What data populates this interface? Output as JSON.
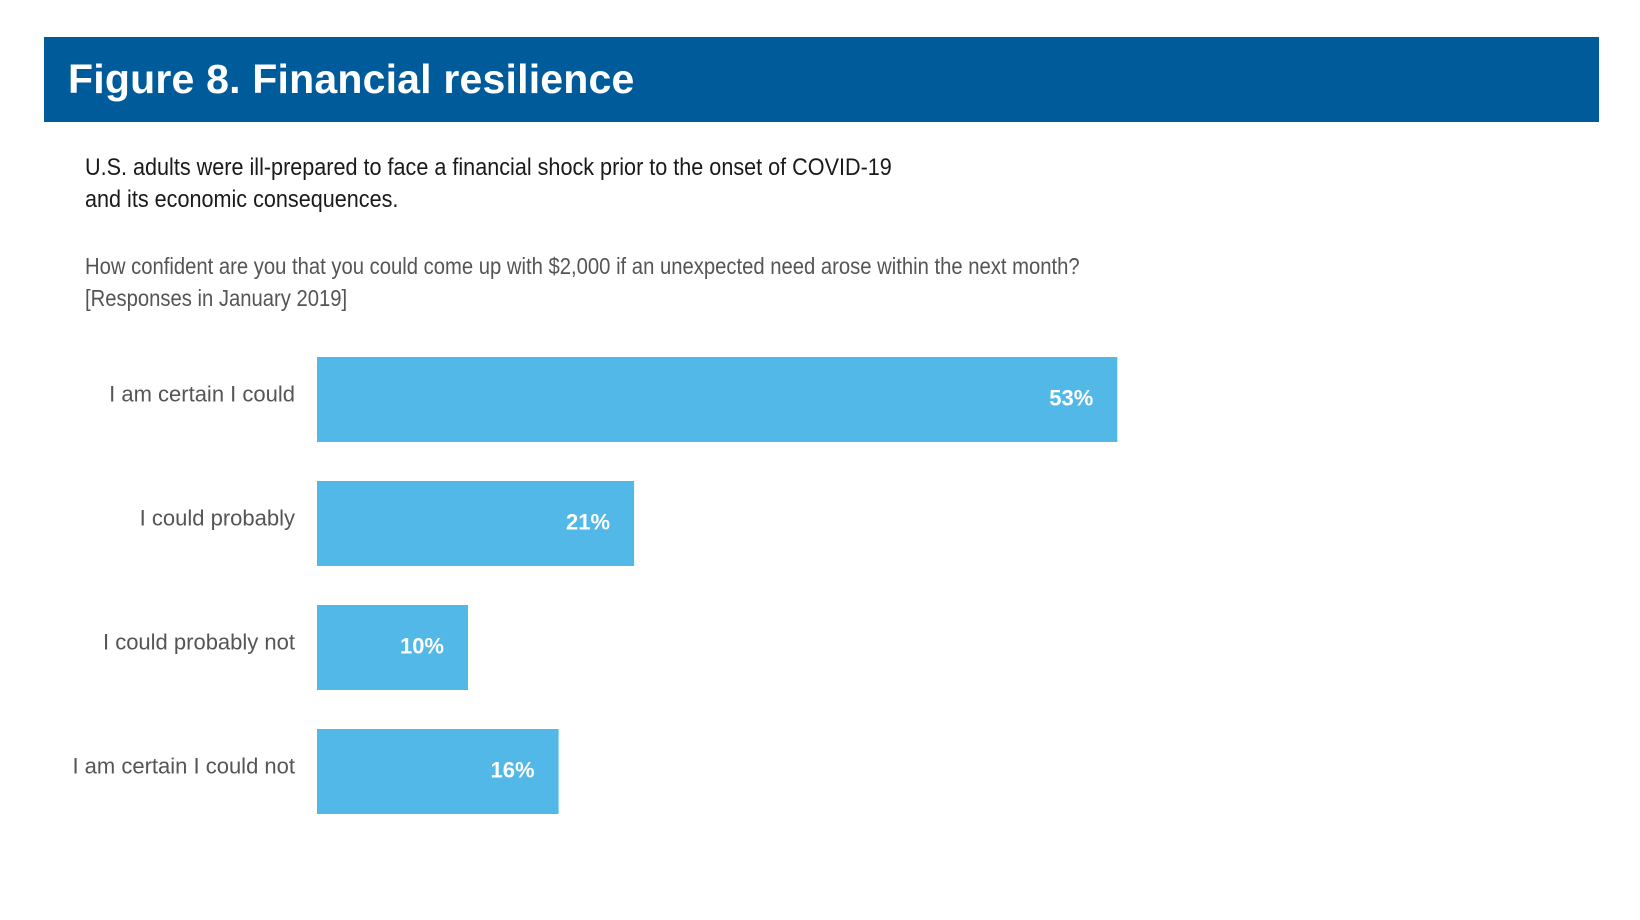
{
  "header": {
    "title": "Figure 8. Financial resilience"
  },
  "subtitle": {
    "line1": "U.S. adults were ill-prepared to face a financial shock prior to the onset of COVID-19",
    "line2": "and its economic consequences."
  },
  "question": {
    "line1": "How confident are you that you could come up with $2,000 if an unexpected need arose within the next month?",
    "line2": "[Responses in January 2019]"
  },
  "colors": {
    "header_band": "#005b9a",
    "bar": "#51b8e8",
    "value_text": "#ffffff",
    "category_text": "#555555"
  },
  "chart_data": {
    "type": "bar",
    "orientation": "horizontal",
    "categories": [
      "I am certain I could",
      "I could probably",
      "I could probably not",
      "I am certain I could not"
    ],
    "values": [
      53,
      21,
      10,
      16
    ],
    "value_labels": [
      "53%",
      "21%",
      "10%",
      "16%"
    ],
    "unit": "%",
    "title": "",
    "xlabel": "",
    "ylabel": "",
    "grid": false,
    "legend": "none"
  }
}
